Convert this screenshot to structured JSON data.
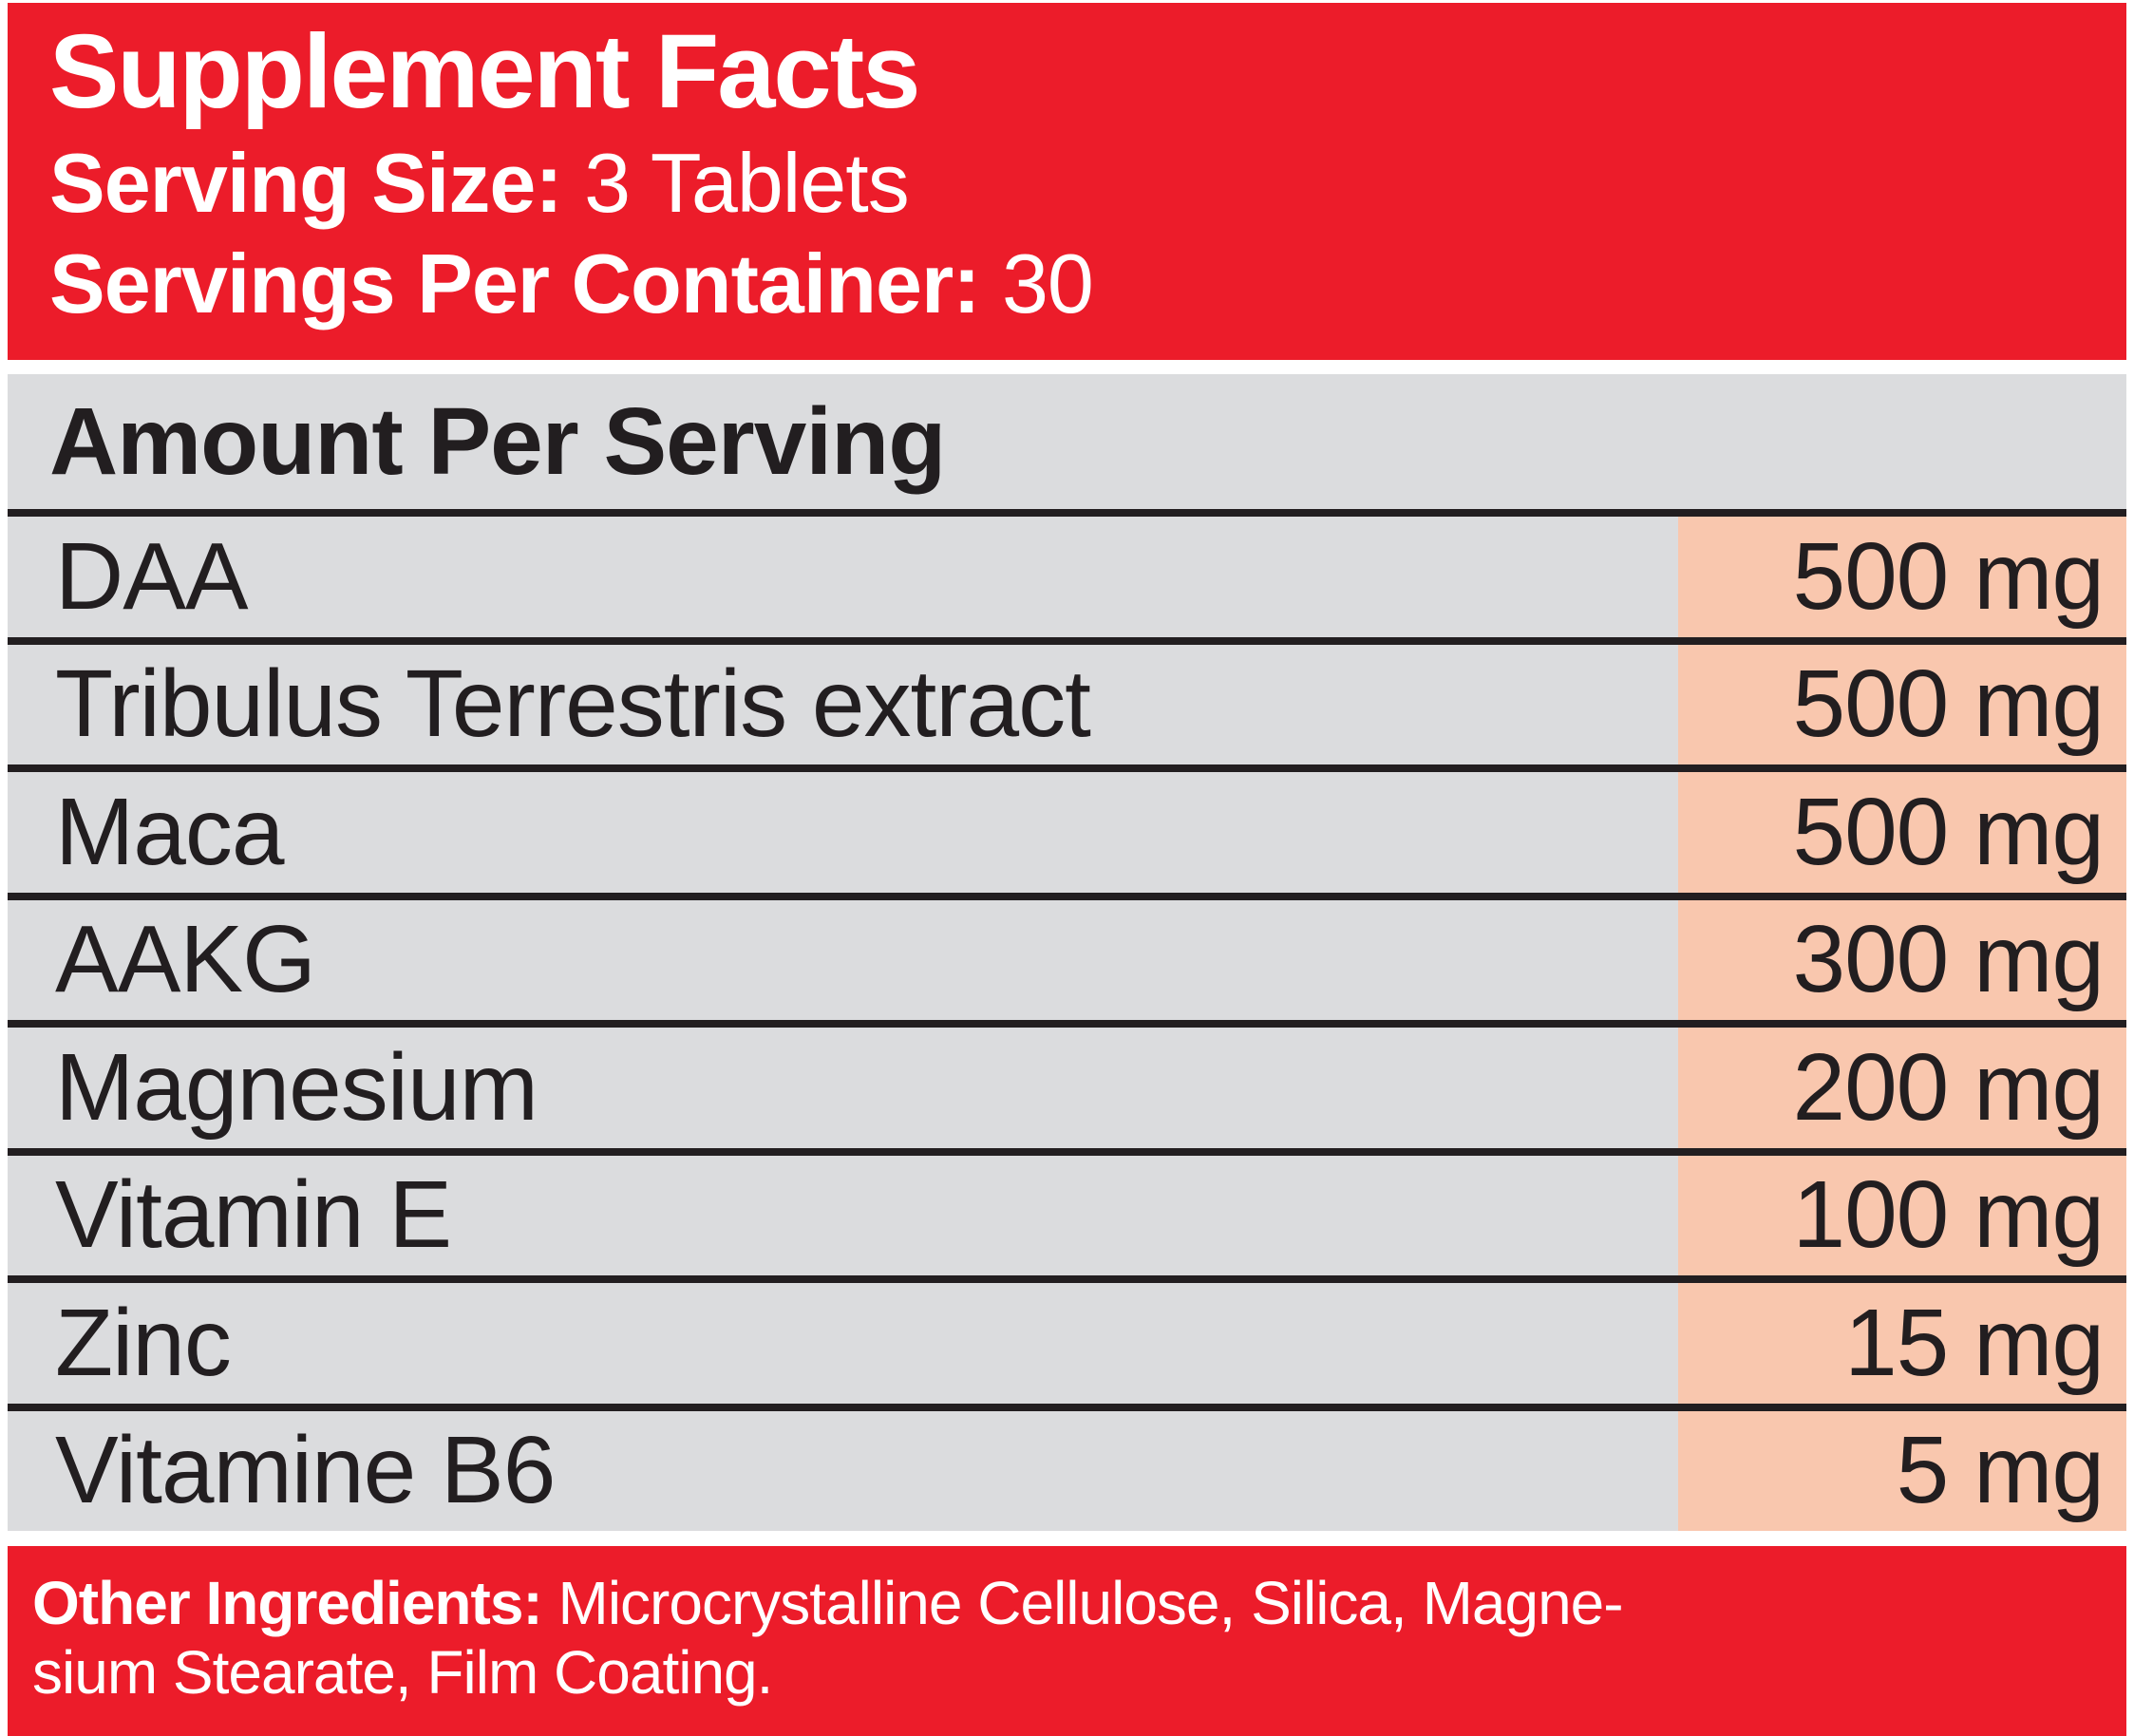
{
  "colors": {
    "red": "#ec1c2a",
    "gray": "#dbdcde",
    "peach": "#f9c7ae",
    "ink": "#221e20",
    "white": "#ffffff"
  },
  "header": {
    "title": "Supplement Facts",
    "serving_size_label": "Serving Size:",
    "serving_size_value": " 3 Tablets",
    "servings_per_container_label": "Servings Per Container:",
    "servings_per_container_value": " 30"
  },
  "table": {
    "header": "Amount Per Serving",
    "rows": [
      {
        "name": "DAA",
        "amount": "500 mg"
      },
      {
        "name": "Tribulus Terrestris extract",
        "amount": "500 mg"
      },
      {
        "name": "Maca",
        "amount": "500 mg"
      },
      {
        "name": "AAKG",
        "amount": "300 mg"
      },
      {
        "name": "Magnesium",
        "amount": "200 mg"
      },
      {
        "name": "Vitamin E",
        "amount": "100 mg"
      },
      {
        "name": "Zinc",
        "amount": "15 mg"
      },
      {
        "name": "Vitamine B6",
        "amount": "5 mg"
      }
    ]
  },
  "footer": {
    "other_ingredients_label": "Other Ingredients:",
    "line1_rest": " Microcrystalline Cellulose, Silica, Magne-",
    "line2": "sium Stearate, Film Coating."
  }
}
